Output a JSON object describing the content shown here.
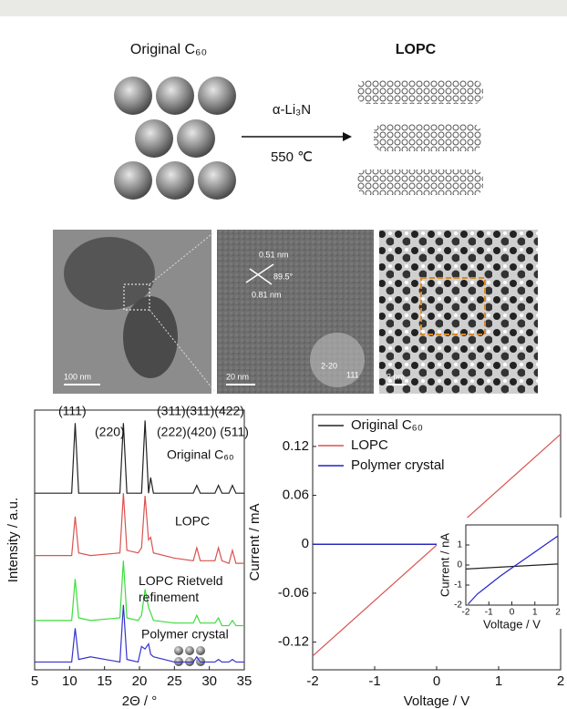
{
  "schematic": {
    "left_label": "Original C₆₀",
    "right_label": "LOPC",
    "reagent": "α-Li₃N",
    "condition": "550 ℃"
  },
  "micrographs": {
    "panel_1_scale": "100 nm",
    "panel_2_scale": "20 nm",
    "spacing_1": "0.51 nm",
    "angle": "89.5°",
    "spacing_2": "0.81 nm",
    "fft_spot_1": "2-20",
    "fft_spot_2": "111",
    "panel_3_scale": "2 nm"
  },
  "chart_data": [
    {
      "type": "line",
      "xlabel": "2Θ / °",
      "ylabel": "Intensity / a.u.",
      "annotations": [
        "(111)",
        "(220)",
        "(311)(311)(422)",
        "(222)(420) (511)"
      ],
      "x": [
        5,
        10.3,
        10.8,
        11.3,
        13,
        17.2,
        17.7,
        18.2,
        19.8,
        20.3,
        20.8,
        21.3,
        21.6,
        22,
        25,
        27.7,
        28.2,
        28.7,
        30.8,
        31.3,
        31.8,
        32.8,
        33.3,
        33.8,
        35
      ],
      "xlim": [
        5,
        35
      ],
      "xticks": [
        5,
        10,
        15,
        20,
        25,
        30,
        35
      ],
      "ylim": [
        0,
        100
      ],
      "series": [
        {
          "name": "Original C₆₀",
          "color": "#222222",
          "values": [
            68,
            68,
            95,
            68,
            68,
            68,
            95,
            68,
            68,
            68,
            96,
            68,
            74,
            68,
            68,
            68,
            71,
            68,
            68,
            71,
            68,
            68,
            71,
            68,
            68
          ]
        },
        {
          "name": "LOPC",
          "color": "#d9534f",
          "values": [
            44,
            44,
            59,
            45,
            44,
            45,
            68,
            46,
            45,
            47,
            67,
            50,
            51,
            45,
            43,
            42,
            47,
            42,
            42,
            47,
            42,
            41,
            46,
            41,
            41
          ]
        },
        {
          "name": "LOPC Rietveld refinement",
          "color": "#3ddc3d",
          "values": [
            19,
            19,
            35,
            20,
            19,
            20,
            42,
            20,
            19,
            21,
            31,
            24,
            22,
            19,
            18,
            18,
            21,
            18,
            18,
            20,
            17,
            17,
            19,
            17,
            17
          ]
        },
        {
          "name": "Polymer crystal",
          "color": "#3333cc",
          "values": [
            3,
            3,
            16,
            4,
            5,
            3,
            25,
            4,
            3,
            9,
            8,
            10,
            6,
            5,
            3,
            3,
            5,
            3,
            3,
            4,
            3,
            3,
            4,
            3,
            3
          ]
        }
      ]
    },
    {
      "type": "line",
      "xlabel": "Voltage / V",
      "ylabel": "Current / mA",
      "legend": "upper left",
      "x": [
        -2,
        2
      ],
      "xlim": [
        -2,
        2
      ],
      "xticks": [
        -2,
        -1,
        0,
        1,
        2
      ],
      "ylim": [
        -0.154,
        0.159
      ],
      "yticks": [
        -0.12,
        -0.06,
        0,
        0.06,
        0.12
      ],
      "series": [
        {
          "name": "Original C₆₀",
          "color": "#222222",
          "values": [
            0,
            0
          ]
        },
        {
          "name": "LOPC",
          "color": "#d9534f",
          "values": [
            -0.137,
            0.135
          ]
        },
        {
          "name": "Polymer crystal",
          "color": "#2222cc",
          "values": [
            0,
            0
          ]
        }
      ]
    },
    {
      "type": "line",
      "xlabel": "Voltage / V",
      "ylabel": "Current / nA",
      "xlim": [
        -2,
        2
      ],
      "xticks": [
        -2,
        -1,
        0,
        1,
        2
      ],
      "ylim": [
        -2,
        2
      ],
      "yticks": [
        -2,
        -1,
        0,
        1
      ],
      "series": [
        {
          "color": "#222222",
          "x": [
            -2,
            2
          ],
          "values": [
            -0.2,
            0.05
          ]
        },
        {
          "color": "#2222cc",
          "x": [
            -1.9,
            -1.5,
            -1,
            -0.5,
            0,
            0.5,
            1,
            1.5,
            2
          ],
          "values": [
            -1.95,
            -1.45,
            -1.0,
            -0.55,
            -0.15,
            0.25,
            0.65,
            1.05,
            1.45
          ]
        }
      ]
    }
  ]
}
